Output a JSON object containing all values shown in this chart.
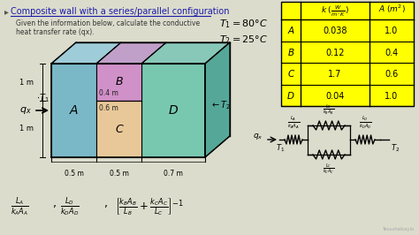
{
  "title": "Composite wall with a series/parallel configuration",
  "subtitle": "Given the information below, calculate the conductive\nheat transfer rate (qx).",
  "bg_color": "#dcdccc",
  "table_bg": "#ffff00",
  "table_rows": [
    [
      "A",
      "0.038",
      "1.0"
    ],
    [
      "B",
      "0.12",
      "0.4"
    ],
    [
      "C",
      "1.7",
      "0.6"
    ],
    [
      "D",
      "0.04",
      "1.0"
    ]
  ],
  "wall_colors": {
    "A": "#7ab8c8",
    "B": "#d090c8",
    "C": "#e8c898",
    "D": "#78c8b0",
    "top_A": "#9eccd8",
    "top_B": "#c0a0c8",
    "top_D": "#88c8b8",
    "right_D": "#55a898"
  }
}
